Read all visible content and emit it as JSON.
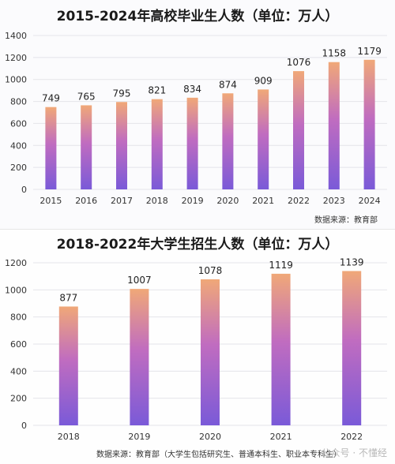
{
  "chart_data": [
    {
      "type": "bar",
      "title": "2015-2024年高校毕业生人数（单位：万人）",
      "categories": [
        "2015",
        "2016",
        "2017",
        "2018",
        "2019",
        "2020",
        "2021",
        "2022",
        "2023",
        "2024"
      ],
      "values": [
        749,
        765,
        795,
        821,
        834,
        874,
        909,
        1076,
        1158,
        1179
      ],
      "ylim": [
        0,
        1400
      ],
      "yticks": [
        0,
        200,
        400,
        600,
        800,
        1000,
        1200,
        1400
      ],
      "grid": true,
      "source": "数据来源：教育部"
    },
    {
      "type": "bar",
      "title": "2018-2022年大学生招生人数（单位：万人）",
      "categories": [
        "2018",
        "2019",
        "2020",
        "2021",
        "2022"
      ],
      "values": [
        877,
        1007,
        1078,
        1119,
        1139
      ],
      "ylim": [
        0,
        1200
      ],
      "yticks": [
        0,
        200,
        400,
        600,
        800,
        1000,
        1200
      ],
      "grid": true,
      "source": "数据来源：教育部（大学生包括研究生、普通本科生、职业本专科生）"
    }
  ],
  "watermark": "公众号 · 不懂经",
  "colors": {
    "bar_top": "#f0a878",
    "bar_mid": "#c06cc0",
    "bar_bottom": "#7a5ad8"
  }
}
